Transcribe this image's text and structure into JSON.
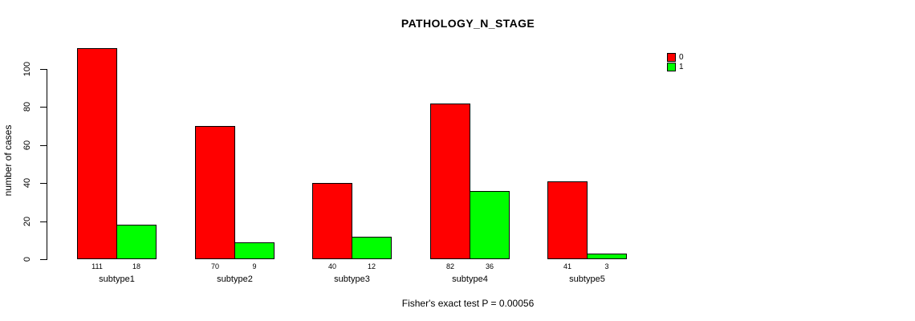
{
  "chart_data": {
    "type": "bar",
    "title": "PATHOLOGY_N_STAGE",
    "subtitle": "Fisher's exact test P = 0.00056",
    "xlabel": "",
    "ylabel": "number of cases",
    "categories": [
      "subtype1",
      "subtype2",
      "subtype3",
      "subtype4",
      "subtype5"
    ],
    "series": [
      {
        "name": "0",
        "color": "#FF0000",
        "values": [
          111,
          70,
          40,
          82,
          41
        ]
      },
      {
        "name": "1",
        "color": "#00FF00",
        "values": [
          18,
          9,
          12,
          36,
          3
        ]
      }
    ],
    "ylim": [
      0,
      100
    ],
    "yticks": [
      0,
      20,
      40,
      60,
      80,
      100
    ],
    "grid": false,
    "legend_position": "top-right",
    "bar_value_labels_shown": true,
    "axis_color": "#000000",
    "background_color": "#FFFFFF"
  }
}
